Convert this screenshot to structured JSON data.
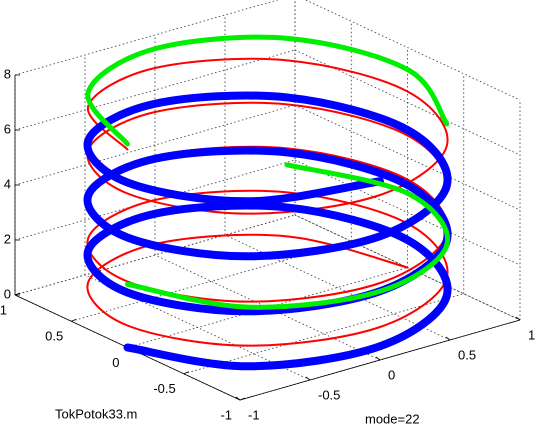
{
  "chart_data": {
    "type": "line3d",
    "xlim": [
      -1,
      1
    ],
    "ylim": [
      -1,
      1
    ],
    "zlim": [
      0,
      8
    ],
    "xticks": [
      -1,
      -0.5,
      0,
      0.5,
      1
    ],
    "yticks": [
      -1,
      -0.5,
      0,
      0.5,
      1
    ],
    "zticks": [
      0,
      2,
      4,
      6,
      8
    ],
    "grid": true,
    "annotations": [
      "TokPotok33.m",
      "mode=22"
    ],
    "series": [
      {
        "color": "#ff0000",
        "width": 2,
        "x": [
          1,
          0.71,
          0,
          -0.71,
          -1,
          -0.71,
          0,
          0.71,
          1,
          0.71,
          0,
          -0.71,
          -1,
          -0.71,
          0,
          0.71,
          1,
          0.71,
          0,
          -0.71,
          -1,
          -0.71,
          0,
          0.71,
          1,
          0.71,
          0,
          -0.71,
          -1,
          -0.71,
          0,
          0.71,
          1,
          0.71,
          0,
          -0.71,
          -1
        ],
        "y": [
          0,
          0.71,
          1,
          0.71,
          0,
          -0.71,
          -1,
          -0.71,
          0,
          0.71,
          1,
          0.71,
          0,
          -0.71,
          -1,
          -0.71,
          0,
          0.71,
          1,
          0.71,
          0,
          -0.71,
          -1,
          -0.71,
          0,
          0.71,
          1,
          0.71,
          0,
          -0.71,
          -1,
          -0.71,
          0,
          0.71,
          1,
          0.71,
          0
        ],
        "z": [
          0,
          0.2,
          0.4,
          0.6,
          0.8,
          1,
          1.2,
          1.4,
          1.6,
          1.8,
          2,
          2.2,
          2.4,
          2.6,
          2.8,
          3,
          3.2,
          3.4,
          3.6,
          3.8,
          4,
          4.2,
          4.4,
          4.6,
          4.8,
          5,
          5.2,
          5.4,
          5.6,
          5.8,
          6,
          6.2,
          6.4,
          6.6,
          6.8,
          7,
          7.2
        ]
      },
      {
        "color": "#0000ff",
        "width": 8,
        "x": [
          -1,
          -0.71,
          0,
          0.71,
          1,
          0.71,
          0,
          -0.71,
          -1,
          -0.71,
          0,
          0.71,
          1,
          0.71,
          0,
          -0.71,
          -1,
          -0.71,
          0,
          0.71,
          1,
          0.71,
          0,
          -0.71,
          -1,
          -0.71,
          0
        ],
        "y": [
          0,
          -0.71,
          -1,
          -0.71,
          0,
          0.71,
          1,
          0.71,
          0,
          -0.71,
          -1,
          -0.71,
          0,
          0.71,
          1,
          0.71,
          0,
          -0.71,
          -1,
          -0.71,
          0,
          0.71,
          1,
          0.71,
          0,
          -0.71,
          -1
        ],
        "z": [
          0,
          0.25,
          0.5,
          0.75,
          1,
          1.25,
          1.5,
          1.75,
          2,
          2.25,
          2.5,
          2.75,
          3,
          3.25,
          3.5,
          3.75,
          4,
          4.25,
          4.5,
          4.75,
          5,
          5.25,
          5.5,
          5.75,
          6,
          6.25,
          6.5
        ]
      },
      {
        "color": "#00ee00",
        "width": 5,
        "x": [
          -1,
          -0.71,
          0,
          0.71,
          1,
          0.71,
          null,
          -1,
          -0.71,
          0,
          0.71,
          1,
          0.71
        ],
        "y": [
          0,
          -0.71,
          -1,
          -0.71,
          0,
          0.71,
          null,
          0,
          0.71,
          1,
          0.71,
          0,
          -0.71
        ],
        "z": [
          2.3,
          2.4,
          2.5,
          2.6,
          2.7,
          2.8,
          null,
          7.4,
          7.5,
          7.5,
          7.4,
          7.2,
          7
        ]
      }
    ]
  }
}
